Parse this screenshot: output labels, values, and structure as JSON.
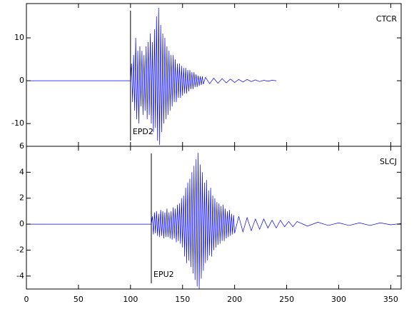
{
  "chart_data": [
    {
      "type": "line",
      "label": "CTCR",
      "phase_label": "EPD2",
      "phase_x": 100,
      "color": "#0000ff",
      "ylim": [
        -15.3,
        18
      ],
      "yticks": [
        -10,
        0,
        10
      ],
      "x": [
        0,
        100,
        101,
        102,
        103,
        104,
        105,
        106,
        107,
        108,
        109,
        110,
        111,
        112,
        113,
        114,
        115,
        116,
        117,
        118,
        119,
        120,
        121,
        122,
        123,
        124,
        125,
        126,
        127,
        128,
        129,
        130,
        131,
        132,
        133,
        134,
        135,
        136,
        137,
        138,
        139,
        140,
        141,
        142,
        143,
        144,
        145,
        146,
        147,
        148,
        149,
        150,
        151,
        152,
        153,
        154,
        155,
        156,
        157,
        158,
        159,
        160,
        161,
        162,
        163,
        164,
        165,
        166,
        167,
        168,
        169,
        170,
        172,
        176,
        180,
        184,
        188,
        192,
        196,
        200,
        204,
        208,
        212,
        216,
        220,
        224,
        228,
        232,
        236,
        240
      ],
      "values": [
        0,
        0,
        4,
        -5,
        6,
        -7,
        10,
        -9,
        7,
        -10,
        8,
        -6,
        7,
        -8,
        6,
        -7,
        8,
        -9,
        9,
        -8,
        11,
        -10,
        9,
        -12,
        12,
        -11,
        15,
        -14,
        17,
        -15,
        13,
        -12,
        11,
        -10,
        10,
        -9,
        8,
        -8,
        7,
        -7,
        6,
        -6,
        6,
        -5,
        5,
        -5,
        4,
        -4,
        4,
        -4,
        3.5,
        -3.5,
        3,
        -3,
        3,
        -3,
        2.5,
        -2.5,
        2.5,
        -2,
        2,
        -2,
        2,
        -1.5,
        1.5,
        -1.5,
        1.2,
        -1.2,
        1,
        -1,
        1,
        -0.8,
        0.8,
        -0.7,
        0.6,
        -0.6,
        0.5,
        -0.5,
        0.4,
        -0.4,
        0.3,
        -0.3,
        0.3,
        -0.2,
        0.2,
        -0.2,
        0.1,
        -0.1,
        0.1,
        0
      ]
    },
    {
      "type": "line",
      "label": "SLCJ",
      "phase_label": "EPU2",
      "phase_x": 120,
      "color": "#0000ff",
      "ylim": [
        -5,
        6
      ],
      "yticks": [
        -4,
        -2,
        0,
        2,
        4,
        6
      ],
      "xlim": [
        0,
        360
      ],
      "xticks": [
        0,
        50,
        100,
        150,
        200,
        250,
        300,
        350
      ],
      "x": [
        0,
        120,
        121,
        122,
        123,
        124,
        125,
        126,
        127,
        128,
        129,
        130,
        131,
        132,
        133,
        134,
        135,
        136,
        137,
        138,
        139,
        140,
        141,
        142,
        143,
        144,
        145,
        146,
        147,
        148,
        149,
        150,
        151,
        152,
        153,
        154,
        155,
        156,
        157,
        158,
        159,
        160,
        161,
        162,
        163,
        164,
        165,
        166,
        167,
        168,
        169,
        170,
        171,
        172,
        173,
        174,
        175,
        176,
        177,
        178,
        179,
        180,
        181,
        182,
        183,
        184,
        185,
        186,
        187,
        188,
        189,
        190,
        191,
        192,
        193,
        194,
        195,
        196,
        197,
        198,
        199,
        200,
        204,
        208,
        212,
        216,
        220,
        224,
        228,
        232,
        236,
        240,
        244,
        248,
        252,
        256,
        260,
        270,
        280,
        290,
        300,
        310,
        320,
        330,
        340,
        350,
        360
      ],
      "values": [
        0,
        0,
        0.6,
        -0.8,
        0.9,
        -0.7,
        1.0,
        -0.9,
        0.8,
        -1.0,
        1.1,
        -0.9,
        1.0,
        -1.1,
        0.9,
        -1.0,
        1.2,
        -1.0,
        0.9,
        -1.1,
        1.0,
        -1.2,
        1.3,
        -1.1,
        1.2,
        -1.4,
        1.5,
        -1.3,
        1.6,
        -1.5,
        2.0,
        -1.8,
        2.2,
        -2.5,
        2.8,
        -3.0,
        3.2,
        -2.8,
        3.5,
        -3.3,
        4.0,
        -3.8,
        4.5,
        -4.3,
        5.0,
        -4.8,
        5.5,
        -5.0,
        4.6,
        -4.2,
        4.0,
        -3.6,
        3.2,
        -3.0,
        3.4,
        -2.8,
        2.6,
        -2.4,
        2.8,
        -2.5,
        2.2,
        -2.0,
        2.0,
        -1.8,
        1.7,
        -1.6,
        1.6,
        -1.5,
        1.4,
        -1.3,
        1.5,
        -1.3,
        1.2,
        -1.1,
        1.0,
        -1.0,
        1.1,
        -0.9,
        0.8,
        -0.8,
        0.7,
        -0.7,
        0.6,
        -0.6,
        0.5,
        -0.5,
        0.4,
        -0.4,
        0.4,
        -0.3,
        0.3,
        -0.3,
        0.3,
        -0.2,
        0.2,
        -0.2,
        0.2,
        -0.15,
        0.15,
        -0.1,
        0.1,
        -0.1,
        0.1,
        -0.1,
        0.1,
        -0.05,
        0.05
      ]
    }
  ]
}
